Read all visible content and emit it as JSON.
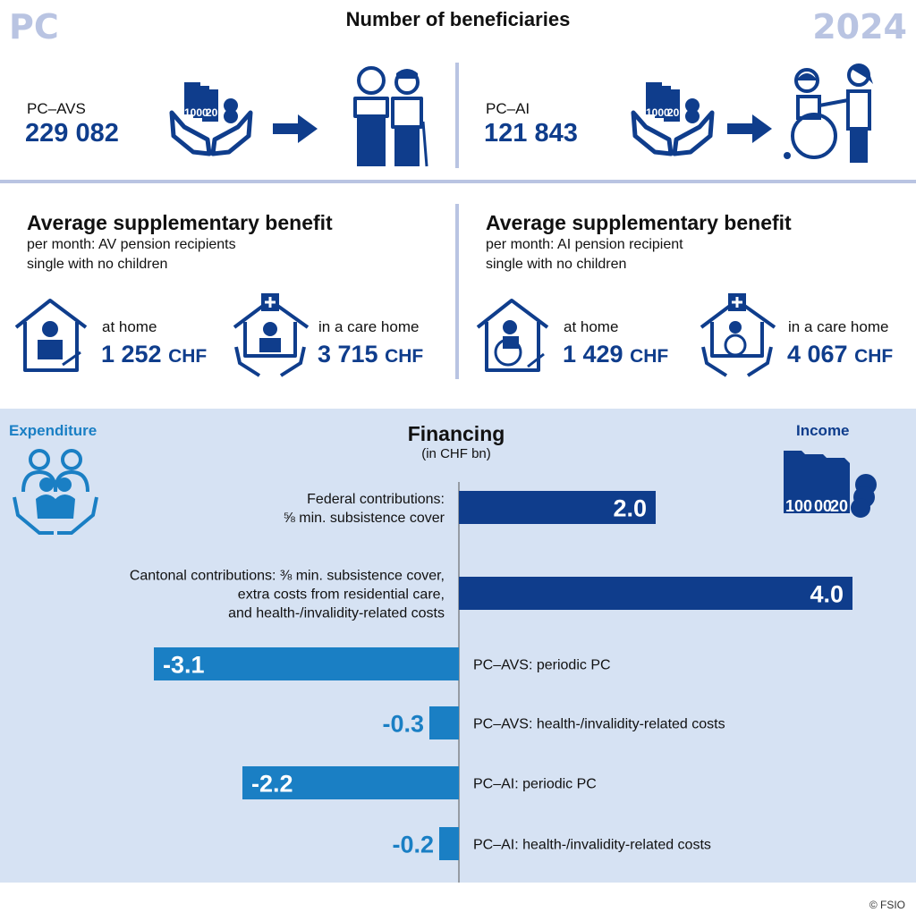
{
  "header": {
    "left_tag": "PC",
    "title": "Number of beneficiaries",
    "year": "2024"
  },
  "beneficiaries": [
    {
      "program": "PC–AVS",
      "count": "229 082"
    },
    {
      "program": "PC–AI",
      "count": "121 843"
    }
  ],
  "average_benefit": [
    {
      "heading": "Average supplementary benefit",
      "sub1": "per month: AV pension recipients",
      "sub2": "single with no children",
      "home_label": "at home",
      "home_value": "1 252",
      "care_label": "in a care home",
      "care_value": "3 715",
      "currency": "CHF"
    },
    {
      "heading": "Average supplementary benefit",
      "sub1": "per month: AI pension recipient",
      "sub2": "single with no children",
      "home_label": "at home",
      "home_value": "1 429",
      "care_label": "in a care home",
      "care_value": "4 067",
      "currency": "CHF"
    }
  ],
  "financing": {
    "expenditure_label": "Expenditure",
    "income_label": "Income",
    "title": "Financing",
    "unit": "(in CHF bn)"
  },
  "chart_data": {
    "type": "bar",
    "orientation": "horizontal",
    "title": "Financing",
    "subtitle": "(in CHF bn)",
    "categories": [
      "Federal contributions: ⅝ min. subsistence cover",
      "Cantonal contributions: ⅜ min. subsistence cover, extra costs from residential care, and health-/invalidity-related costs",
      "PC–AVS: periodic PC",
      "PC–AVS: health-/invalidity-related costs",
      "PC–AI: periodic PC",
      "PC–AI: health-/invalidity-related costs"
    ],
    "values": [
      2.0,
      4.0,
      -3.1,
      -0.3,
      -2.2,
      -0.2
    ],
    "value_labels": [
      "2.0",
      "4.0",
      "-3.1",
      "-0.3",
      "-2.2",
      "-0.2"
    ],
    "label_lines": [
      [
        "Federal contributions:",
        "⅝ min. subsistence cover"
      ],
      [
        "Cantonal contributions: ⅜ min. subsistence cover,",
        "extra costs from residential care,",
        "and health-/invalidity-related costs"
      ],
      [
        "PC–AVS: periodic PC"
      ],
      [
        "PC–AVS: health-/invalidity-related costs"
      ],
      [
        "PC–AI: periodic PC"
      ],
      [
        "PC–AI: health-/invalidity-related costs"
      ]
    ],
    "colors": {
      "income": "#0f3d8c",
      "expenditure": "#1a7fc4"
    },
    "xlim": [
      -3.2,
      4.05
    ]
  },
  "footer": {
    "copyright": "© FSIO"
  }
}
